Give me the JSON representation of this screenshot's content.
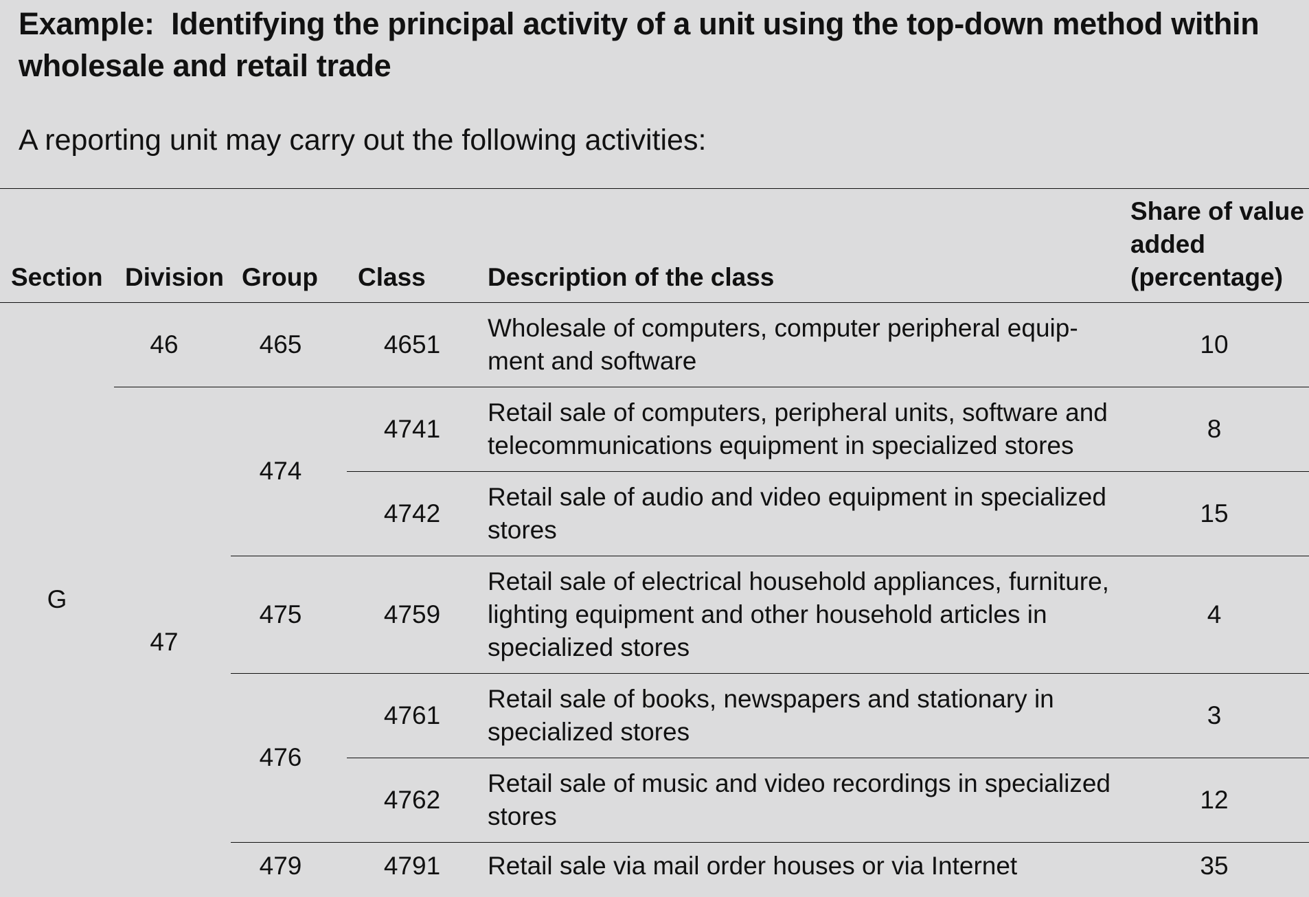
{
  "heading": {
    "title": "Example:  Identifying the principal activity of a unit using the top-down method within wholesale and retail trade",
    "intro": "A reporting unit may carry out the following activities:"
  },
  "table": {
    "headers": {
      "section": "Section",
      "division": "Division",
      "group": "Group",
      "class": "Class",
      "description": "Description of the class",
      "share": "Share of value added (percentage)"
    },
    "section": "G",
    "divisions": {
      "d46": "46",
      "d47": "47"
    },
    "groups": {
      "g465": "465",
      "g474": "474",
      "g475": "475",
      "g476": "476",
      "g479": "479"
    },
    "rows": [
      {
        "class": "4651",
        "description": "Wholesale of computers, computer peripheral equip-ment and software",
        "share": "10"
      },
      {
        "class": "4741",
        "description": "Retail sale of computers, peripheral units, software and telecommunications equipment in specialized stores",
        "share": "8"
      },
      {
        "class": "4742",
        "description": "Retail sale of audio and video equipment in specialized stores",
        "share": "15"
      },
      {
        "class": "4759",
        "description": "Retail sale of electrical household appliances, furniture, lighting equipment and other household articles in specialized stores",
        "share": "4"
      },
      {
        "class": "4761",
        "description": "Retail sale of books, newspapers and stationary in specialized stores",
        "share": "3"
      },
      {
        "class": "4762",
        "description": "Retail sale of music and video recordings in specialized stores",
        "share": "12"
      },
      {
        "class": "4791",
        "description": "Retail sale via mail order houses or via Internet",
        "share": "35"
      }
    ]
  }
}
